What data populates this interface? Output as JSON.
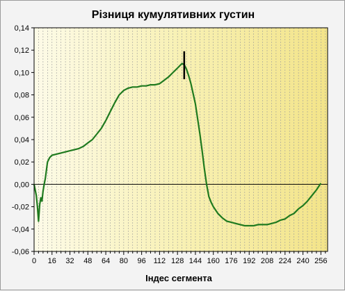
{
  "chart_data": {
    "type": "line",
    "title": "Різниця кумулятивних густин",
    "xlabel": "Індес сегмента",
    "ylabel": "",
    "xlim": [
      0,
      262
    ],
    "ylim": [
      -0.06,
      0.14
    ],
    "xticks": [
      0,
      16,
      32,
      48,
      64,
      80,
      96,
      112,
      128,
      144,
      160,
      176,
      192,
      208,
      224,
      240,
      256
    ],
    "yticks": [
      -0.06,
      -0.04,
      -0.02,
      0.0,
      0.02,
      0.04,
      0.06,
      0.08,
      0.1,
      0.12,
      0.14
    ],
    "ytick_labels": [
      "-0,06",
      "-0,04",
      "-0,02",
      "0,00",
      "0,02",
      "0,04",
      "0,06",
      "0,08",
      "0,10",
      "0,12",
      "0,14"
    ],
    "grid": true,
    "series": [
      {
        "color": "#1f7a1f",
        "x": [
          0,
          2,
          3,
          4,
          5,
          6,
          7,
          8,
          9,
          10,
          12,
          14,
          16,
          20,
          24,
          28,
          32,
          40,
          44,
          48,
          52,
          56,
          60,
          64,
          68,
          72,
          76,
          80,
          84,
          88,
          92,
          96,
          100,
          104,
          108,
          112,
          116,
          120,
          124,
          128,
          132,
          134,
          136,
          138,
          140,
          144,
          148,
          150,
          152,
          154,
          156,
          158,
          160,
          164,
          168,
          172,
          176,
          180,
          184,
          188,
          192,
          196,
          200,
          204,
          208,
          212,
          216,
          220,
          224,
          228,
          232,
          236,
          240,
          244,
          248,
          252,
          254,
          256
        ],
        "y": [
          0.0,
          -0.01,
          -0.02,
          -0.033,
          -0.018,
          -0.012,
          -0.015,
          -0.006,
          0.0,
          0.005,
          0.02,
          0.024,
          0.026,
          0.027,
          0.028,
          0.029,
          0.03,
          0.032,
          0.034,
          0.037,
          0.04,
          0.045,
          0.05,
          0.057,
          0.065,
          0.073,
          0.08,
          0.084,
          0.086,
          0.087,
          0.087,
          0.088,
          0.088,
          0.089,
          0.089,
          0.09,
          0.093,
          0.096,
          0.1,
          0.104,
          0.108,
          0.107,
          0.103,
          0.097,
          0.09,
          0.072,
          0.045,
          0.03,
          0.014,
          0.0,
          -0.011,
          -0.016,
          -0.02,
          -0.026,
          -0.03,
          -0.033,
          -0.034,
          -0.035,
          -0.036,
          -0.037,
          -0.037,
          -0.037,
          -0.036,
          -0.036,
          -0.036,
          -0.035,
          -0.034,
          -0.032,
          -0.031,
          -0.028,
          -0.026,
          -0.022,
          -0.019,
          -0.015,
          -0.01,
          -0.005,
          -0.002,
          0.001
        ]
      }
    ],
    "marker": {
      "x": 134,
      "y_from": 0.094,
      "y_to": 0.119
    }
  }
}
